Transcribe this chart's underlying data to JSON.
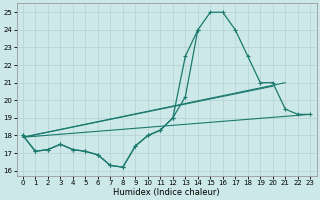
{
  "xlabel": "Humidex (Indice chaleur)",
  "background_color": "#cde8e8",
  "line_color": "#1a7a6e",
  "grid_color": "#b8d4d4",
  "xlim": [
    -0.5,
    23.5
  ],
  "ylim": [
    15.7,
    25.5
  ],
  "xtick_labels": [
    "0",
    "1",
    "2",
    "3",
    "4",
    "5",
    "6",
    "7",
    "8",
    "9",
    "1011",
    "1213",
    "14",
    "",
    "1617",
    "1819",
    "2021",
    "2223"
  ],
  "yticks": [
    16,
    17,
    18,
    19,
    20,
    21,
    22,
    23,
    24,
    25
  ],
  "series_curved1": {
    "x": [
      0,
      1,
      2,
      3,
      4,
      5,
      6,
      7,
      8,
      9,
      10,
      11,
      12,
      13,
      14,
      15,
      16,
      17,
      18,
      19,
      20,
      21,
      22,
      23
    ],
    "y": [
      18,
      17.1,
      17.2,
      17.5,
      17.2,
      17.1,
      16.9,
      16.3,
      16.2,
      17.4,
      18.0,
      18.3,
      19.0,
      22.5,
      24.0,
      25.0,
      25.0,
      24.0,
      22.5,
      21.0,
      21.0,
      19.5,
      19.2,
      19.2
    ]
  },
  "series_curved2": {
    "x": [
      0,
      1,
      2,
      3,
      4,
      5,
      6,
      7,
      8,
      9,
      10,
      11,
      12,
      13,
      14
    ],
    "y": [
      18,
      17.1,
      17.2,
      17.5,
      17.2,
      17.1,
      16.9,
      16.3,
      16.2,
      17.4,
      18.0,
      18.3,
      19.0,
      20.2,
      24.0
    ]
  },
  "straight_lines": [
    {
      "x": [
        0,
        21
      ],
      "y": [
        17.9,
        21.0
      ]
    },
    {
      "x": [
        0,
        23
      ],
      "y": [
        17.9,
        19.2
      ]
    },
    {
      "x": [
        0,
        20
      ],
      "y": [
        17.9,
        20.8
      ]
    }
  ]
}
